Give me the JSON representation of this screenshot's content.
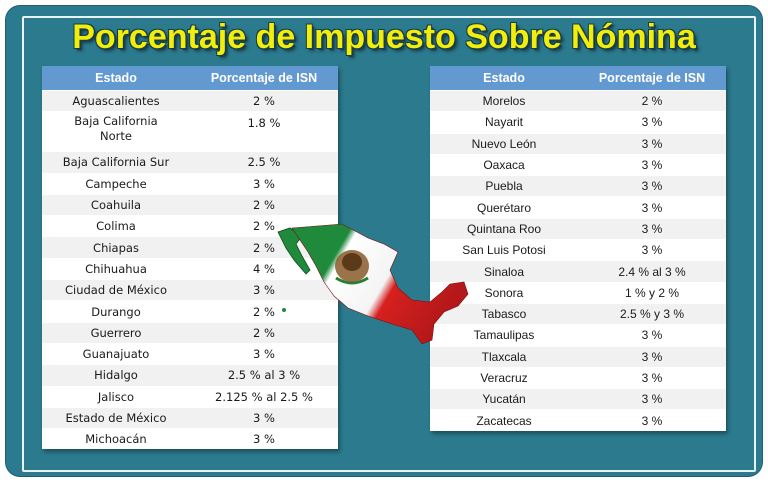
{
  "title": "Porcentaje de Impuesto Sobre Nómina",
  "headers": {
    "estado": "Estado",
    "porcentaje": "Porcentaje de ISN"
  },
  "left_rows": [
    {
      "estado": "Aguascalientes",
      "pct": "2 %"
    },
    {
      "estado": "Baja California Norte",
      "pct": "1.8 %"
    },
    {
      "estado": "Baja California Sur",
      "pct": "2.5 %"
    },
    {
      "estado": "Campeche",
      "pct": "3 %"
    },
    {
      "estado": "Coahuila",
      "pct": "2 %"
    },
    {
      "estado": "Colima",
      "pct": "2 %"
    },
    {
      "estado": "Chiapas",
      "pct": "2 %"
    },
    {
      "estado": "Chihuahua",
      "pct": "4 %"
    },
    {
      "estado": "Ciudad de México",
      "pct": "3 %"
    },
    {
      "estado": "Durango",
      "pct": "2 %"
    },
    {
      "estado": "Guerrero",
      "pct": "2 %"
    },
    {
      "estado": "Guanajuato",
      "pct": "3 %"
    },
    {
      "estado": "Hidalgo",
      "pct": "2.5 % al 3 %"
    },
    {
      "estado": "Jalisco",
      "pct": "2.125 % al 2.5 %"
    },
    {
      "estado": "Estado de México",
      "pct": "3 %"
    },
    {
      "estado": "Michoacán",
      "pct": "3 %"
    }
  ],
  "right_rows": [
    {
      "estado": "Morelos",
      "pct": "2 %"
    },
    {
      "estado": "Nayarit",
      "pct": "3 %"
    },
    {
      "estado": "Nuevo León",
      "pct": "3 %"
    },
    {
      "estado": "Oaxaca",
      "pct": "3 %"
    },
    {
      "estado": "Puebla",
      "pct": "3 %"
    },
    {
      "estado": "Querétaro",
      "pct": "3 %"
    },
    {
      "estado": "Quintana Roo",
      "pct": "3 %"
    },
    {
      "estado": "San Luis Potosi",
      "pct": "3 %"
    },
    {
      "estado": "Sinaloa",
      "pct": "2.4 % al 3 %"
    },
    {
      "estado": "Sonora",
      "pct": "1 % y 2 %"
    },
    {
      "estado": "Tabasco",
      "pct": "2.5 % y 3 %"
    },
    {
      "estado": "Tamaulipas",
      "pct": "3 %"
    },
    {
      "estado": "Tlaxcala",
      "pct": "3 %"
    },
    {
      "estado": "Veracruz",
      "pct": "3 %"
    },
    {
      "estado": "Yucatán",
      "pct": "3 %"
    },
    {
      "estado": "Zacatecas",
      "pct": "3 %"
    }
  ],
  "colors": {
    "background": "#2b7a8e",
    "title": "#f1ee0c",
    "header": "#6399d1",
    "flag_green": "#1f8a3c",
    "flag_red": "#d6201f"
  },
  "map_icon": "mexico-flag-map-icon"
}
